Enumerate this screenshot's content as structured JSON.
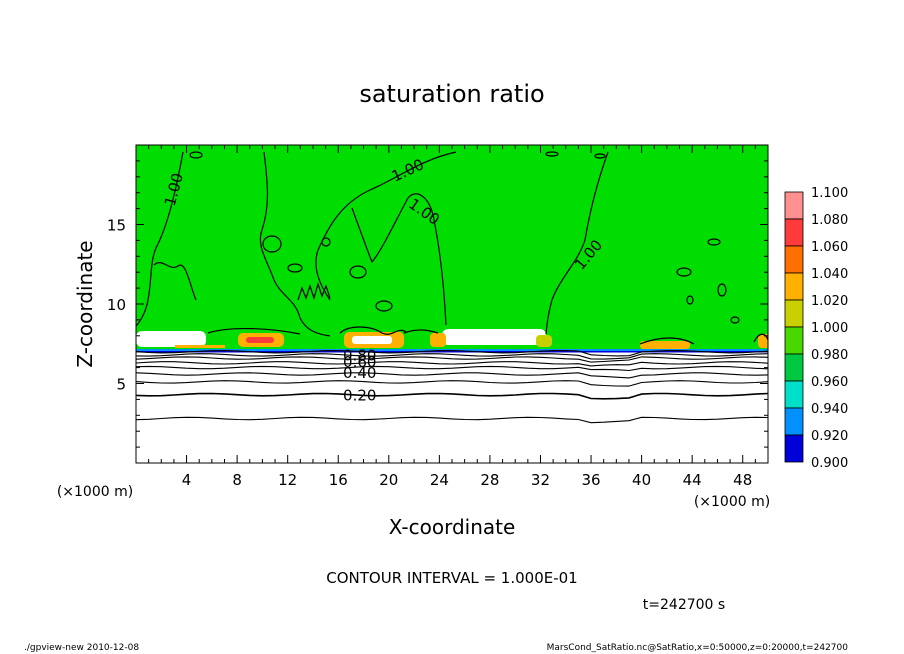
{
  "chart_data": {
    "type": "heatmap",
    "title": "saturation ratio",
    "xlabel": "X-coordinate",
    "ylabel": "Z-coordinate",
    "x_unit_left": "(×1000 m)",
    "x_unit_right": "(×1000 m)",
    "xlim": [
      0,
      50
    ],
    "ylim": [
      0,
      20
    ],
    "x_ticks": [
      "4",
      "8",
      "12",
      "16",
      "20",
      "24",
      "28",
      "32",
      "36",
      "40",
      "44",
      "48"
    ],
    "x_tick_values": [
      4,
      8,
      12,
      16,
      20,
      24,
      28,
      32,
      36,
      40,
      44,
      48
    ],
    "y_ticks": [
      "5",
      "10",
      "15"
    ],
    "y_tick_values": [
      5,
      10,
      15
    ],
    "contour_interval_text": "CONTOUR INTERVAL = 1.000E-01",
    "time_text": "t=242700 s",
    "contour_labels": [
      {
        "text": "1.00",
        "x": 3.0,
        "y": 17.2,
        "angle": -75
      },
      {
        "text": "1.00",
        "x": 21.5,
        "y": 18.4,
        "angle": -25
      },
      {
        "text": "1.00",
        "x": 22.8,
        "y": 15.8,
        "angle": 35
      },
      {
        "text": "1.00",
        "x": 35.8,
        "y": 13.1,
        "angle": -50
      },
      {
        "text": "0.80",
        "x": 17.7,
        "y": 6.75,
        "angle": 0
      },
      {
        "text": "0.60",
        "x": 17.7,
        "y": 6.35,
        "angle": 0
      },
      {
        "text": "0.40",
        "x": 17.7,
        "y": 5.65,
        "angle": 0
      },
      {
        "text": "0.20",
        "x": 17.7,
        "y": 4.25,
        "angle": 0
      }
    ],
    "low_contour_levels": [
      {
        "value": 0.9,
        "z": 7.0
      },
      {
        "value": 0.8,
        "z": 6.8
      },
      {
        "value": 0.7,
        "z": 6.6
      },
      {
        "value": 0.6,
        "z": 6.3
      },
      {
        "value": 0.5,
        "z": 6.0
      },
      {
        "value": 0.4,
        "z": 5.6
      },
      {
        "value": 0.3,
        "z": 5.1
      },
      {
        "value": 0.2,
        "z": 4.3
      },
      {
        "value": 0.1,
        "z": 2.8
      }
    ],
    "colorbar": {
      "levels": [
        "1.100",
        "1.080",
        "1.060",
        "1.040",
        "1.020",
        "1.000",
        "0.980",
        "0.960",
        "0.940",
        "0.920",
        "0.900"
      ],
      "colors": [
        "#ff9090",
        "#ff3a3a",
        "#ff7000",
        "#ffb000",
        "#c8d000",
        "#48d800",
        "#00c840",
        "#00e0c8",
        "#0090ff",
        "#0000d8",
        "#6000a0"
      ]
    },
    "field_color": "#00dd00",
    "below_cloud_color": "#ffffff"
  },
  "footer": {
    "left": "./gpview-new   2010-12-08",
    "right": "MarsCond_SatRatio.nc@SatRatio,x=0:50000,z=0:20000,t=242700"
  }
}
